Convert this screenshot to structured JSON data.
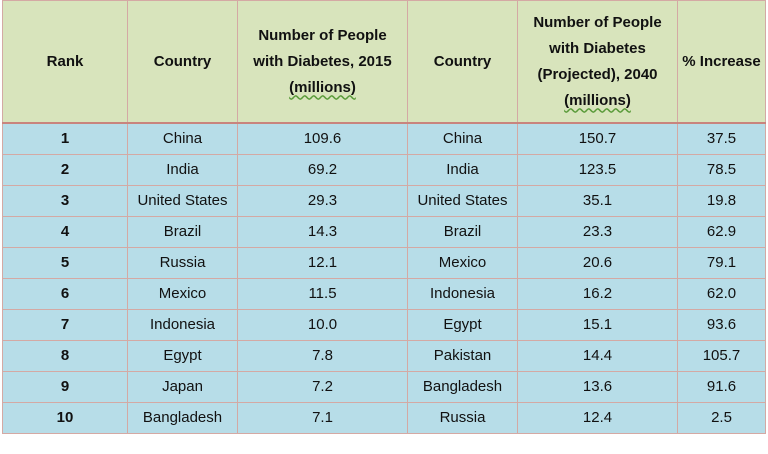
{
  "headers": {
    "rank": "Rank",
    "country_2015": "Country",
    "people_2015_pre": "Number of People with Diabetes, 2015",
    "people_2015_unit": "(millions)",
    "country_2040": "Country",
    "people_2040_pre": "Number of People with Diabetes (Projected), 2040",
    "people_2040_unit": "(millions)",
    "increase": "% Increase"
  },
  "rows": [
    {
      "rank": "1",
      "country_2015": "China",
      "people_2015": "109.6",
      "country_2040": "China",
      "people_2040": "150.7",
      "increase": "37.5"
    },
    {
      "rank": "2",
      "country_2015": "India",
      "people_2015": "69.2",
      "country_2040": "India",
      "people_2040": "123.5",
      "increase": "78.5"
    },
    {
      "rank": "3",
      "country_2015": "United States",
      "people_2015": "29.3",
      "country_2040": "United States",
      "people_2040": "35.1",
      "increase": "19.8"
    },
    {
      "rank": "4",
      "country_2015": "Brazil",
      "people_2015": "14.3",
      "country_2040": "Brazil",
      "people_2040": "23.3",
      "increase": "62.9"
    },
    {
      "rank": "5",
      "country_2015": "Russia",
      "people_2015": "12.1",
      "country_2040": "Mexico",
      "people_2040": "20.6",
      "increase": "79.1"
    },
    {
      "rank": "6",
      "country_2015": "Mexico",
      "people_2015": "11.5",
      "country_2040": "Indonesia",
      "people_2040": "16.2",
      "increase": "62.0"
    },
    {
      "rank": "7",
      "country_2015": "Indonesia",
      "people_2015": "10.0",
      "country_2040": "Egypt",
      "people_2040": "15.1",
      "increase": "93.6"
    },
    {
      "rank": "8",
      "country_2015": "Egypt",
      "people_2015": "7.8",
      "country_2040": "Pakistan",
      "people_2040": "14.4",
      "increase": "105.7"
    },
    {
      "rank": "9",
      "country_2015": "Japan",
      "people_2015": "7.2",
      "country_2040": "Bangladesh",
      "people_2040": "13.6",
      "increase": "91.6"
    },
    {
      "rank": "10",
      "country_2015": "Bangladesh",
      "people_2015": "7.1",
      "country_2040": "Russia",
      "people_2040": "12.4",
      "increase": "2.5"
    }
  ]
}
